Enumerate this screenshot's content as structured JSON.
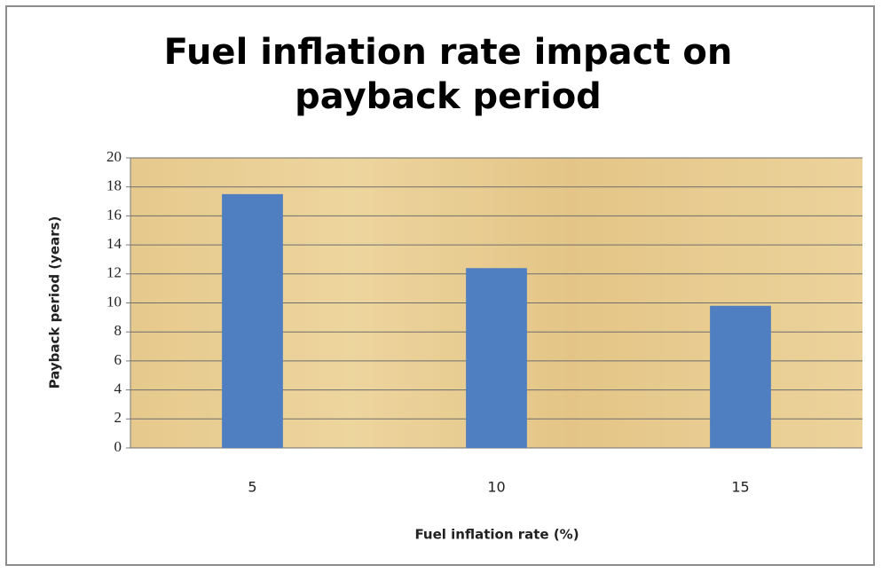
{
  "chart_data": {
    "type": "bar",
    "title": "Fuel inflation rate impact on payback period",
    "x_axis_label": "Fuel inflation rate (%)",
    "y_axis_label": "Payback period (years)",
    "categories": [
      "5",
      "10",
      "15"
    ],
    "values": [
      17.5,
      12.4,
      9.8
    ],
    "color": "#4f7fc0",
    "ylim": [
      0,
      20
    ],
    "yticks": [
      0,
      2,
      4,
      6,
      8,
      10,
      12,
      14,
      16,
      18,
      20
    ],
    "grid": true
  }
}
